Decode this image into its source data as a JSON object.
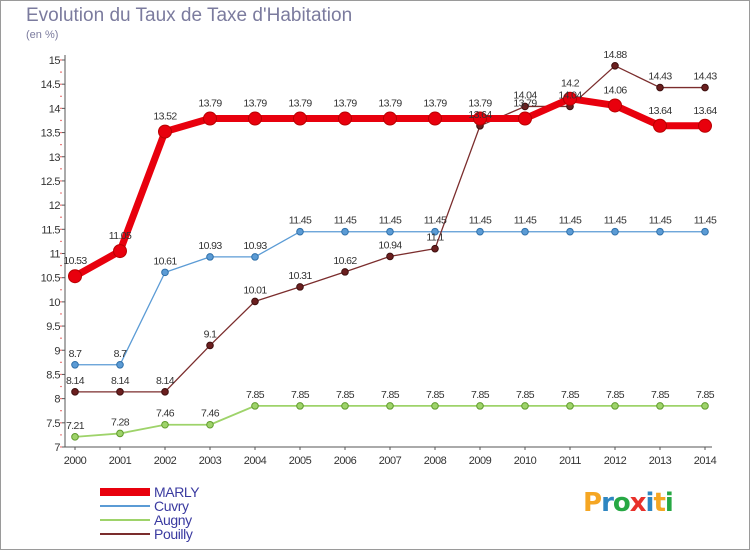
{
  "title": "Evolution du Taux de Taxe d'Habitation",
  "unit_label": "(en %)",
  "logo": {
    "letters": [
      "P",
      "r",
      "o",
      "x",
      "i",
      "t",
      "i"
    ],
    "colors": [
      "#f5a623",
      "#2e86c1",
      "#27a844",
      "#e8302a",
      "#2e86c1",
      "#f5a623",
      "#27a844"
    ]
  },
  "chart_data": {
    "type": "line",
    "title": "Evolution du Taux de Taxe d'Habitation",
    "ylabel": "(en %)",
    "xlabel": "",
    "x": [
      2000,
      2001,
      2002,
      2003,
      2004,
      2005,
      2006,
      2007,
      2008,
      2009,
      2010,
      2011,
      2012,
      2013,
      2014
    ],
    "ylim": [
      7,
      15
    ],
    "yticks": [
      "7",
      "7.5",
      "8",
      "8.5",
      "9",
      "9.5",
      "10",
      "10.5",
      "11",
      "11.5",
      "12",
      "12.5",
      "13",
      "13.5",
      "14",
      "14.5",
      "15"
    ],
    "legend_position": "bottom-left",
    "series": [
      {
        "name": "MARLY",
        "color": "#e8000d",
        "values": [
          10.53,
          11.05,
          13.52,
          13.79,
          13.79,
          13.79,
          13.79,
          13.79,
          13.79,
          13.79,
          13.79,
          14.2,
          14.06,
          13.64,
          13.64
        ],
        "labels": [
          "10.53",
          "11.05",
          "13.52",
          "13.79",
          "13.79",
          "13.79",
          "13.79",
          "13.79",
          "13.79",
          "13.79",
          "13.79",
          "14.2",
          "14.06",
          "13.64",
          "13.64"
        ]
      },
      {
        "name": "Cuvry",
        "color": "#5b9bd5",
        "values": [
          8.7,
          8.7,
          10.61,
          10.93,
          10.93,
          11.45,
          11.45,
          11.45,
          11.45,
          11.45,
          11.45,
          11.45,
          11.45,
          11.45,
          11.45
        ],
        "labels": [
          "8.7",
          "8.7",
          "10.61",
          "10.93",
          "10.93",
          "11.45",
          "11.45",
          "11.45",
          "11.45",
          "11.45",
          "11.45",
          "11.45",
          "11.45",
          "11.45",
          "11.45"
        ]
      },
      {
        "name": "Augny",
        "color": "#9ed36a",
        "values": [
          7.21,
          7.28,
          7.46,
          7.46,
          7.85,
          7.85,
          7.85,
          7.85,
          7.85,
          7.85,
          7.85,
          7.85,
          7.85,
          7.85,
          7.85
        ],
        "labels": [
          "7.21",
          "7.28",
          "7.46",
          "7.46",
          "7.85",
          "7.85",
          "7.85",
          "7.85",
          "7.85",
          "7.85",
          "7.85",
          "7.85",
          "7.85",
          "7.85",
          "7.85"
        ]
      },
      {
        "name": "Pouilly",
        "color": "#7b2d2d",
        "values": [
          8.14,
          8.14,
          8.14,
          9.1,
          10.01,
          10.31,
          10.62,
          10.94,
          11.1,
          13.64,
          14.04,
          14.04,
          14.88,
          14.43,
          14.43
        ],
        "labels": [
          "8.14",
          "8.14",
          "8.14",
          "9.1",
          "10.01",
          "10.31",
          "10.62",
          "10.94",
          "11.1",
          "13.64",
          "14.04",
          "14.04",
          "14.88",
          "14.43",
          "14.43"
        ]
      }
    ]
  }
}
